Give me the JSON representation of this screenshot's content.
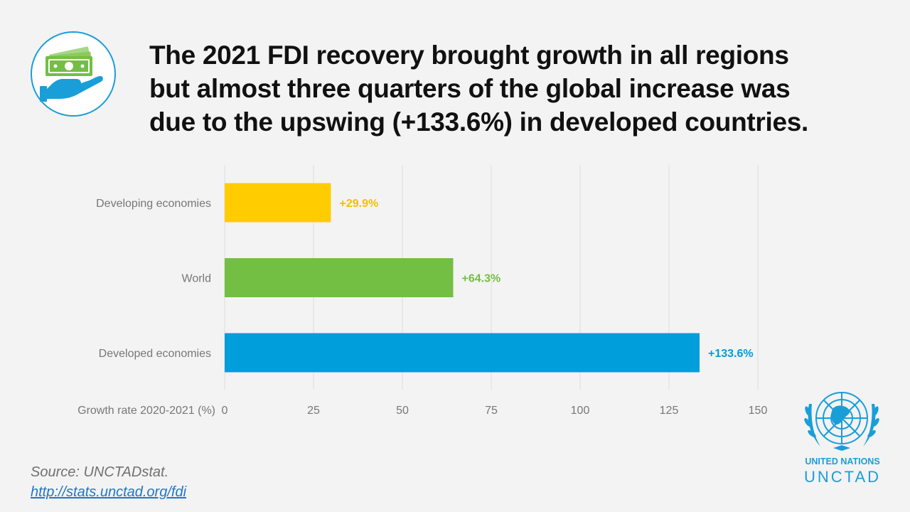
{
  "title_lines": [
    "The 2021 FDI recovery brought growth in all regions",
    "but  almost three quarters of the global increase was",
    "due to the upswing (+133.6%) in developed countries."
  ],
  "chart_data": {
    "type": "bar",
    "orientation": "horizontal",
    "title": "",
    "xlabel": "Growth rate 2020-2021 (%)",
    "ylabel": "",
    "xlim": [
      0,
      150
    ],
    "ticks": [
      0,
      25,
      50,
      75,
      100,
      125,
      150
    ],
    "tick_labels": [
      "0",
      "25",
      "50",
      "75",
      "100",
      "125",
      "150"
    ],
    "grid": true,
    "categories": [
      "Developing economies",
      "World",
      "Developed economies"
    ],
    "values": [
      29.9,
      64.3,
      133.6
    ],
    "data_labels": [
      "+29.9%",
      "+64.3%",
      "+133.6%"
    ],
    "colors": [
      "#ffcc00",
      "#72bf44",
      "#009edb"
    ]
  },
  "source": {
    "text": "Source: UNCTADstat.",
    "link": "http://stats.unctad.org/fdi"
  },
  "logo": {
    "name": "UNITED NATIONS",
    "sub": "UNCTAD",
    "color": "#1a9ed8"
  },
  "icons": {
    "title_icon": "money-hand-icon",
    "logo_emblem": "un-emblem-icon"
  }
}
